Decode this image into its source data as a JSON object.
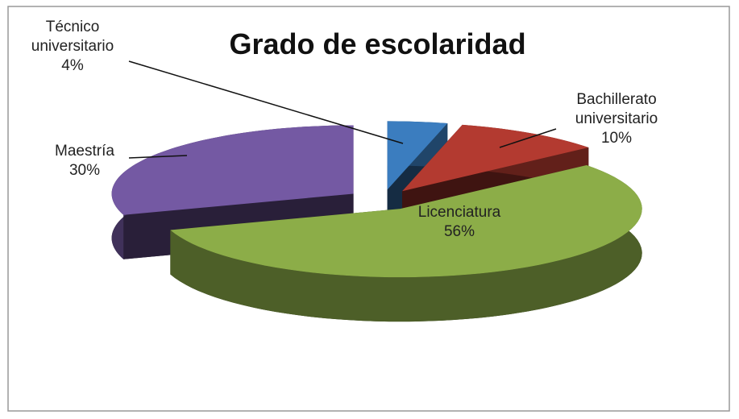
{
  "chart_data": {
    "type": "pie3d",
    "title": "Grado de escolaridad",
    "categories": [
      "Técnico universitario",
      "Bachillerato universitario",
      "Licenciatura",
      "Maestría"
    ],
    "values": [
      4,
      10,
      56,
      30
    ],
    "value_labels": [
      "4%",
      "10%",
      "56%",
      "30%"
    ],
    "colors": [
      "#3b7dbf",
      "#b33a30",
      "#8cad48",
      "#7459a3"
    ]
  }
}
